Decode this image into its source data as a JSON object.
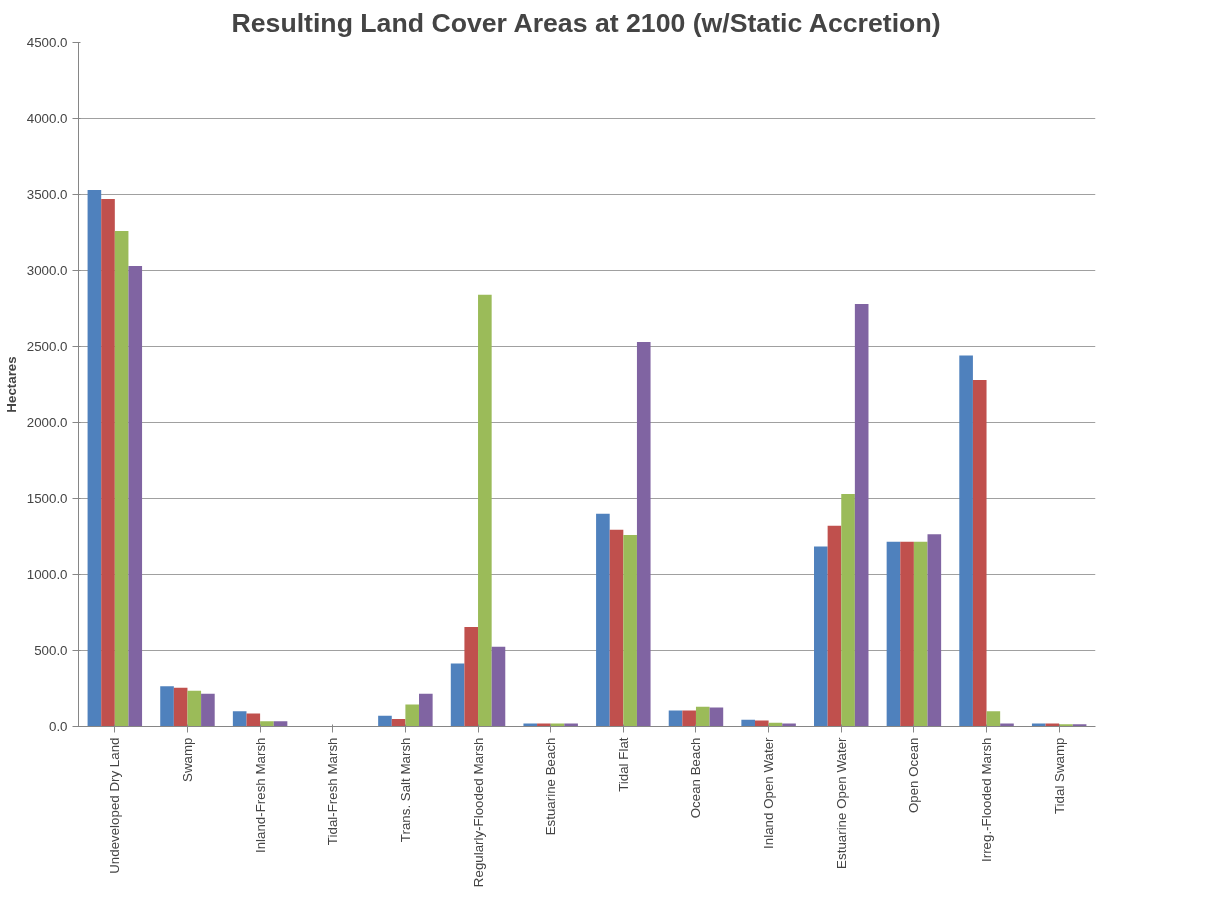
{
  "chart_data": {
    "type": "bar",
    "title": "Resulting Land Cover Areas at 2100 (w/Static Accretion)",
    "ylabel": "Hectares",
    "categories": [
      "Undeveloped Dry Land",
      "Swamp",
      "Inland-Fresh Marsh",
      "Tidal-Fresh Marsh",
      "Trans. Salt Marsh",
      "Regularly-Flooded Marsh",
      "Estuarine Beach",
      "Tidal Flat",
      "Ocean Beach",
      "Inland Open Water",
      "Estuarine Open Water",
      "Open Ocean",
      "Irreg.-Flooded Marsh",
      "Tidal Swamp"
    ],
    "series": [
      {
        "color": "#4f81bd",
        "values": [
          3530,
          265,
          100,
          null,
          70,
          415,
          20,
          1400,
          105,
          45,
          1185,
          1215,
          2440,
          20
        ]
      },
      {
        "color": "#c0504d",
        "values": [
          3470,
          255,
          85,
          null,
          50,
          655,
          20,
          1295,
          105,
          40,
          1320,
          1215,
          2280,
          20
        ]
      },
      {
        "color": "#9bbb59",
        "values": [
          3260,
          235,
          35,
          null,
          145,
          2840,
          20,
          1260,
          130,
          25,
          1530,
          1215,
          100,
          15
        ]
      },
      {
        "color": "#8064a2",
        "values": [
          3030,
          215,
          35,
          null,
          215,
          525,
          20,
          2530,
          125,
          20,
          2780,
          1265,
          20,
          15
        ]
      }
    ],
    "ylim": [
      0,
      4500
    ],
    "yticks": [
      {
        "value": 0,
        "label": "0.0"
      },
      {
        "value": 500,
        "label": "500.0"
      },
      {
        "value": 1000,
        "label": "1000.0"
      },
      {
        "value": 1500,
        "label": "1500.0"
      },
      {
        "value": 2000,
        "label": "2000.0"
      },
      {
        "value": 2500,
        "label": "2500.0"
      },
      {
        "value": 3000,
        "label": "3000.0"
      },
      {
        "value": 3500,
        "label": "3500.0"
      },
      {
        "value": 4000,
        "label": "4000.0"
      },
      {
        "value": 4500,
        "label": "4500.0"
      }
    ],
    "grid": "y"
  }
}
